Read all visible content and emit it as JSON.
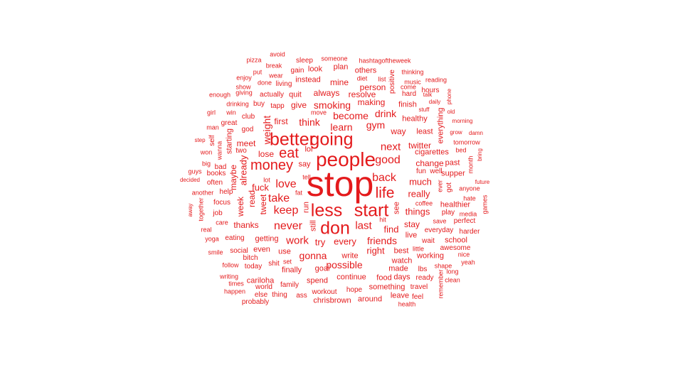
{
  "color": "#e41a1c",
  "words": [
    "stop",
    "people",
    "going",
    "better",
    "less",
    "start",
    "don",
    "life",
    "money",
    "eat",
    "love",
    "back",
    "good",
    "take",
    "keep",
    "never",
    "last",
    "work",
    "next",
    "friends",
    "gym",
    "learn",
    "think",
    "smoking",
    "become",
    "drink",
    "weight",
    "fuck",
    "much",
    "really",
    "things",
    "every",
    "try",
    "gonna",
    "possible",
    "right",
    "find",
    "stay",
    "twitter",
    "change",
    "cigarettes",
    "first",
    "meet",
    "lose",
    "say",
    "lol",
    "give",
    "always",
    "making",
    "resolve",
    "finish",
    "healthy",
    "way",
    "least",
    "getting",
    "even",
    "use",
    "write",
    "watch",
    "best",
    "live",
    "goal",
    "continue",
    "food",
    "days",
    "ready",
    "lbs",
    "finally",
    "spend",
    "hope",
    "something",
    "workout",
    "around",
    "chrisbrown",
    "cariloha",
    "family",
    "thing",
    "world",
    "ass",
    "else",
    "probably",
    "happen",
    "times",
    "writing",
    "follow",
    "social",
    "today",
    "bitch",
    "shit",
    "set",
    "eating",
    "care",
    "job",
    "focus",
    "help",
    "another",
    "thanks",
    "week",
    "read",
    "tweet",
    "real",
    "yoga",
    "smile",
    "books",
    "often",
    "guys",
    "decided",
    "big",
    "bad",
    "two",
    "won",
    "wanna",
    "step",
    "self",
    "starting",
    "man",
    "great",
    "god",
    "club",
    "girl",
    "win",
    "drinking",
    "buy",
    "tapp",
    "enough",
    "giving",
    "actually",
    "quit",
    "show",
    "done",
    "living",
    "enjoy",
    "put",
    "wear",
    "break",
    "pizza",
    "avoid",
    "sleep",
    "gain",
    "look",
    "someone",
    "plan",
    "hashtagoftheweek",
    "others",
    "diet",
    "list",
    "mine",
    "instead",
    "person",
    "positive",
    "come",
    "hard",
    "hours",
    "thinking",
    "music",
    "talk",
    "reading",
    "phone",
    "daily",
    "stuff",
    "old",
    "everything",
    "morning",
    "grow",
    "damn",
    "tomorrow",
    "bed",
    "bring",
    "month",
    "past",
    "supper",
    "fun",
    "well",
    "got",
    "ever",
    "anyone",
    "hate",
    "future",
    "games",
    "healthier",
    "coffee",
    "play",
    "media",
    "perfect",
    "save",
    "everyday",
    "harder",
    "wait",
    "school",
    "awesome",
    "little",
    "nice",
    "working",
    "yeah",
    "long",
    "shape",
    "remember",
    "clean",
    "travel",
    "leave",
    "feel",
    "health",
    "already",
    "maybe",
    "lot",
    "tell",
    "fat",
    "run",
    "still",
    "hit",
    "see",
    "away",
    "together",
    "move",
    "made"
  ]
}
